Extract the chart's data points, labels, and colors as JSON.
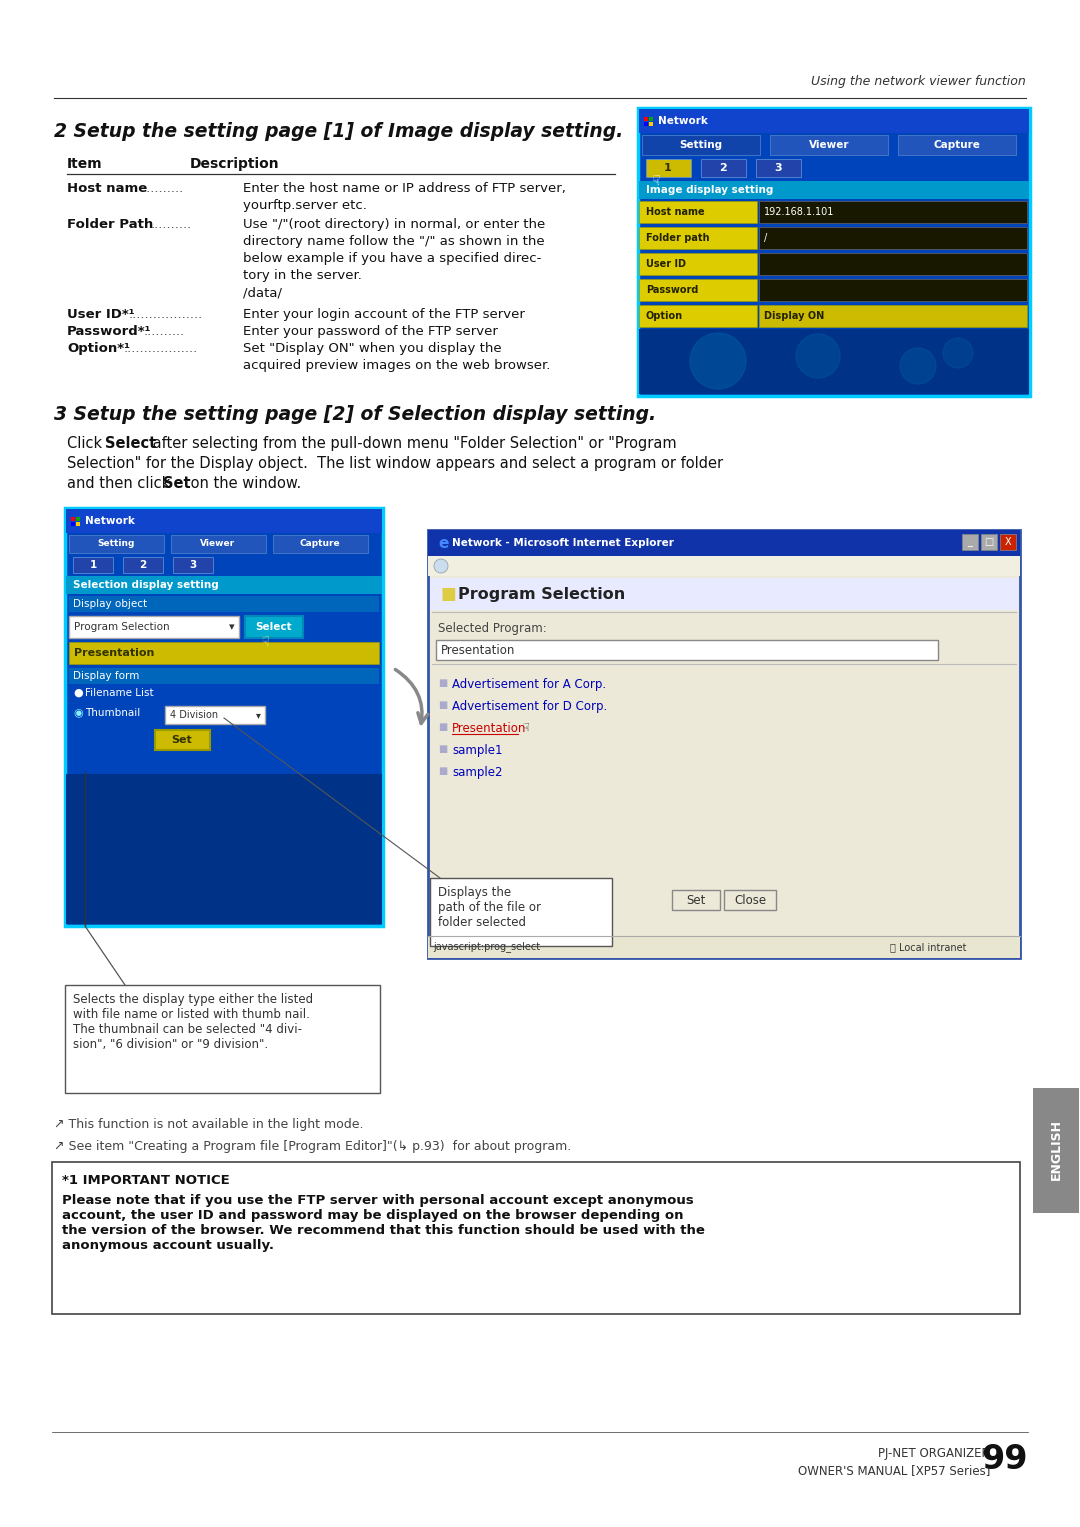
{
  "page_bg": "#ffffff",
  "header_italic": "Using the network viewer function",
  "section2_title": "2 Setup the setting page [1] of Image display setting.",
  "section3_title": "3 Setup the setting page [2] of Selection display setting.",
  "table_header_item": "Item",
  "table_header_desc": "Description",
  "callout_text": "Displays the\npath of the file or\nfolder selected",
  "footnote1": "↗ This function is not available in the light mode.",
  "footnote2": "↗ See item \"Creating a Program file [Program Editor]\"(↳ p.93)  for about program.",
  "notice_title": "*1 IMPORTANT NOTICE",
  "notice_body": "Please note that if you use the FTP server with personal account except anonymous\naccount, the user ID and password may be displayed on the browser depending on\nthe version of the browser. We recommend that this function should be used with the\nanonymous account usually.",
  "footer_right1": "PJ-NET ORGANIZER",
  "footer_right2": "OWNER'S MANUAL [XP57 Series]",
  "footer_page": "99",
  "english_tab": "ENGLISH",
  "ann_text": "Selects the display type either the listed\nwith file name or listed with thumb nail.\nThe thumbnail can be selected \"4 divi-\nsion\", \"6 division\" or \"9 division\"."
}
